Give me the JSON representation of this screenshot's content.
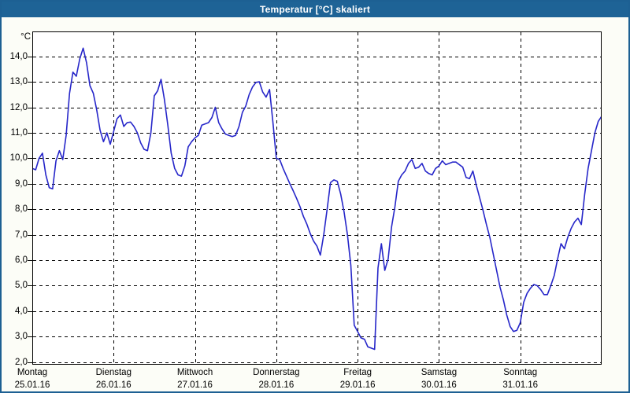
{
  "window": {
    "title": "Temperatur [°C] skaliert"
  },
  "colors": {
    "titlebar": "#1E6396",
    "frame": "#1D6093",
    "panel_background": "#FCFDF7",
    "plot_background": "#FFFFFF",
    "grid": "#000000",
    "line": "#2626C9"
  },
  "chart_data": {
    "type": "line",
    "title": "Temperatur [°C] skaliert",
    "ylabel": "°C",
    "ylim": [
      2.0,
      14.0
    ],
    "ytick_step": 1.0,
    "ytick_labels": [
      "14,0",
      "13,0",
      "12,0",
      "11,0",
      "10,0",
      "9,0",
      "8,0",
      "7,0",
      "6,0",
      "5,0",
      "4,0",
      "3,0",
      "2,0"
    ],
    "grid": "dashed",
    "legend_position": "none",
    "x_days": [
      {
        "weekday": "Montag",
        "date": "25.01.16"
      },
      {
        "weekday": "Dienstag",
        "date": "26.01.16"
      },
      {
        "weekday": "Mittwoch",
        "date": "27.01.16"
      },
      {
        "weekday": "Donnerstag",
        "date": "28.01.16"
      },
      {
        "weekday": "Freitag",
        "date": "29.01.16"
      },
      {
        "weekday": "Samstag",
        "date": "30.01.16"
      },
      {
        "weekday": "Sonntag",
        "date": "31.01.16"
      }
    ],
    "points_per_day": 24,
    "series": [
      {
        "name": "Temperatur [°C]",
        "color": "#2626C9",
        "values": [
          9.6,
          9.55,
          10.0,
          10.2,
          9.35,
          8.85,
          8.8,
          9.9,
          10.3,
          9.95,
          10.9,
          12.55,
          13.38,
          13.22,
          13.9,
          14.32,
          13.75,
          12.85,
          12.55,
          11.9,
          11.1,
          10.65,
          11.0,
          10.55,
          11.05,
          11.55,
          11.7,
          11.25,
          11.4,
          11.42,
          11.25,
          11.0,
          10.6,
          10.35,
          10.3,
          11.0,
          12.45,
          12.65,
          13.1,
          12.3,
          11.3,
          10.2,
          9.6,
          9.35,
          9.3,
          9.7,
          10.45,
          10.65,
          10.8,
          10.9,
          11.3,
          11.35,
          11.4,
          11.6,
          12.0,
          11.4,
          11.15,
          10.95,
          10.9,
          10.85,
          10.9,
          11.25,
          11.8,
          12.05,
          12.5,
          12.8,
          12.98,
          13.0,
          12.6,
          12.4,
          12.7,
          11.4,
          10.0,
          9.95,
          9.6,
          9.3,
          9.0,
          8.72,
          8.42,
          8.1,
          7.72,
          7.42,
          7.05,
          6.75,
          6.55,
          6.2,
          7.0,
          8.0,
          9.05,
          9.15,
          9.1,
          8.6,
          7.9,
          7.0,
          5.8,
          3.45,
          3.2,
          2.95,
          2.9,
          2.6,
          2.55,
          2.5,
          5.7,
          6.65,
          5.6,
          6.05,
          7.3,
          8.1,
          9.1,
          9.35,
          9.5,
          9.8,
          9.95,
          9.6,
          9.65,
          9.8,
          9.5,
          9.4,
          9.35,
          9.6,
          9.7,
          9.9,
          9.75,
          9.8,
          9.85,
          9.85,
          9.75,
          9.65,
          9.25,
          9.2,
          9.5,
          8.95,
          8.45,
          7.95,
          7.4,
          6.9,
          6.25,
          5.6,
          4.95,
          4.45,
          3.85,
          3.4,
          3.2,
          3.25,
          3.55,
          4.35,
          4.7,
          4.9,
          5.05,
          5.0,
          4.85,
          4.65,
          4.65,
          5.0,
          5.4,
          6.05,
          6.65,
          6.45,
          6.9,
          7.25,
          7.5,
          7.65,
          7.4,
          8.6,
          9.6,
          10.3,
          11.0,
          11.45,
          11.65
        ]
      }
    ]
  }
}
